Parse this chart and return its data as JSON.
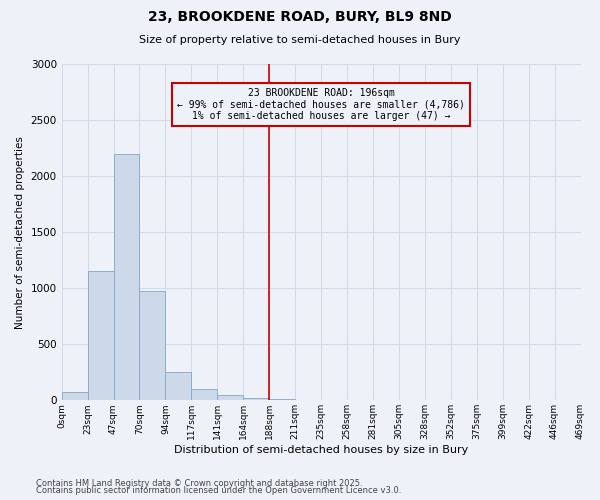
{
  "title": "23, BROOKDENE ROAD, BURY, BL9 8ND",
  "subtitle": "Size of property relative to semi-detached houses in Bury",
  "xlabel": "Distribution of semi-detached houses by size in Bury",
  "ylabel": "Number of semi-detached properties",
  "annotation_title": "23 BROOKDENE ROAD: 196sqm",
  "annotation_line1": "← 99% of semi-detached houses are smaller (4,786)",
  "annotation_line2": "1% of semi-detached houses are larger (47) →",
  "footer_line1": "Contains HM Land Registry data © Crown copyright and database right 2025.",
  "footer_line2": "Contains public sector information licensed under the Open Government Licence v3.0.",
  "bin_labels": [
    "0sqm",
    "23sqm",
    "47sqm",
    "70sqm",
    "94sqm",
    "117sqm",
    "141sqm",
    "164sqm",
    "188sqm",
    "211sqm",
    "235sqm",
    "258sqm",
    "281sqm",
    "305sqm",
    "328sqm",
    "352sqm",
    "375sqm",
    "399sqm",
    "422sqm",
    "446sqm",
    "469sqm"
  ],
  "bar_values": [
    75,
    1150,
    2200,
    975,
    250,
    100,
    50,
    20,
    15,
    0,
    0,
    0,
    0,
    0,
    0,
    0,
    0,
    0,
    0,
    0
  ],
  "bar_color": "#cdd9e8",
  "bar_edge_color": "#7fa8c8",
  "vline_x": 8.0,
  "vline_color": "#cc0000",
  "ylim": [
    0,
    3000
  ],
  "yticks": [
    0,
    500,
    1000,
    1500,
    2000,
    2500,
    3000
  ],
  "annotation_box_color": "#cc0000",
  "grid_color": "#d0dae8",
  "background_color": "#eef2f8",
  "title_fontsize": 10,
  "subtitle_fontsize": 8
}
